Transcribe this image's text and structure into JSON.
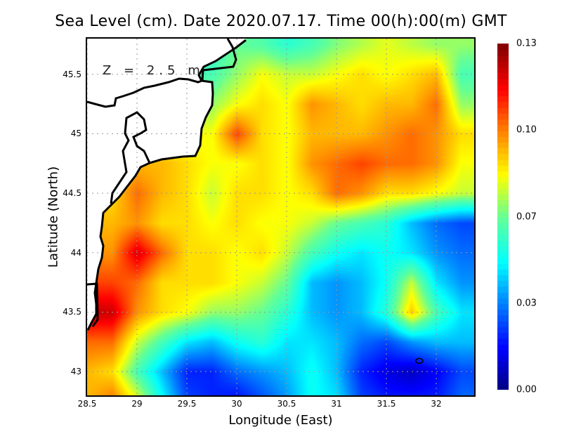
{
  "chart_data": {
    "type": "heatmap",
    "title": "Sea Level (cm). Date 2020.07.17. Time 00(h):00(m) GMT",
    "annotation": "Z = 2.5 m",
    "xlabel": "Longitude (East)",
    "ylabel": "Latitude (North)",
    "xlim": [
      28.5,
      32.38
    ],
    "ylim": [
      42.8,
      45.8
    ],
    "xticks": [
      "28.5",
      "29",
      "29.5",
      "30",
      "30.5",
      "31",
      "31.5",
      "32"
    ],
    "yticks": [
      "43",
      "43.5",
      "44",
      "44.5",
      "45",
      "45.5"
    ],
    "grid": true,
    "colorbar": {
      "ticks": [
        "0.00",
        "0.03",
        "0.07",
        "0.10",
        "0.13"
      ],
      "range": [
        0,
        0.13
      ],
      "colormap": "jet"
    },
    "lon": [
      28.5,
      28.75,
      29,
      29.25,
      29.5,
      29.75,
      30,
      30.25,
      30.5,
      30.75,
      31,
      31.25,
      31.5,
      31.75,
      32,
      32.25
    ],
    "lat": [
      45.75,
      45.5,
      45.25,
      45,
      44.75,
      44.5,
      44.25,
      44,
      43.75,
      43.5,
      43.25,
      43,
      42.75
    ],
    "values": [
      [
        null,
        null,
        null,
        null,
        null,
        0.055,
        0.065,
        0.062,
        0.055,
        0.06,
        0.068,
        0.073,
        0.078,
        0.074,
        0.07,
        0.07
      ],
      [
        null,
        null,
        null,
        null,
        null,
        0.06,
        0.07,
        0.08,
        0.075,
        0.075,
        0.08,
        0.085,
        0.08,
        0.085,
        0.09,
        0.06
      ],
      [
        null,
        null,
        null,
        null,
        null,
        0.07,
        0.08,
        0.085,
        0.08,
        0.095,
        0.09,
        0.085,
        0.09,
        0.09,
        0.1,
        0.07
      ],
      [
        null,
        null,
        null,
        null,
        null,
        0.08,
        0.105,
        0.085,
        0.08,
        0.09,
        0.09,
        0.09,
        0.095,
        0.1,
        0.095,
        0.085
      ],
      [
        null,
        null,
        null,
        0.09,
        0.085,
        0.08,
        0.08,
        0.085,
        0.08,
        0.095,
        0.1,
        0.105,
        0.1,
        0.1,
        0.095,
        0.08
      ],
      [
        null,
        0.085,
        0.1,
        0.09,
        0.085,
        0.075,
        0.085,
        0.085,
        0.08,
        0.085,
        0.1,
        0.095,
        0.085,
        0.085,
        0.08,
        0.075
      ],
      [
        null,
        0.09,
        0.095,
        0.085,
        0.085,
        0.08,
        0.085,
        0.08,
        0.08,
        0.075,
        0.065,
        0.06,
        0.055,
        0.04,
        0.03,
        0.025
      ],
      [
        null,
        0.095,
        0.118,
        0.1,
        0.085,
        0.085,
        0.08,
        0.085,
        0.075,
        0.06,
        0.05,
        0.045,
        0.05,
        0.045,
        0.035,
        0.03
      ],
      [
        null,
        0.105,
        0.1,
        0.085,
        0.085,
        0.085,
        0.08,
        0.075,
        0.065,
        0.04,
        0.035,
        0.04,
        0.05,
        0.075,
        0.045,
        0.035
      ],
      [
        null,
        0.12,
        0.095,
        0.085,
        0.08,
        0.07,
        0.07,
        0.065,
        0.055,
        0.04,
        0.035,
        0.04,
        0.055,
        0.088,
        0.06,
        0.045
      ],
      [
        0.1,
        0.1,
        0.075,
        0.06,
        0.045,
        0.04,
        0.05,
        0.055,
        0.045,
        0.045,
        0.04,
        0.03,
        0.025,
        0.035,
        0.04,
        0.04
      ],
      [
        0.09,
        0.085,
        0.06,
        0.04,
        0.02,
        0.02,
        0.03,
        0.035,
        0.04,
        0.05,
        0.04,
        0.02,
        0.012,
        0.008,
        0.015,
        0.025
      ],
      [
        0.09,
        0.1,
        0.08,
        0.05,
        0.025,
        0.02,
        0.015,
        0.025,
        0.035,
        0.05,
        0.045,
        0.025,
        0.02,
        0.02,
        0.02,
        0.03
      ]
    ]
  }
}
